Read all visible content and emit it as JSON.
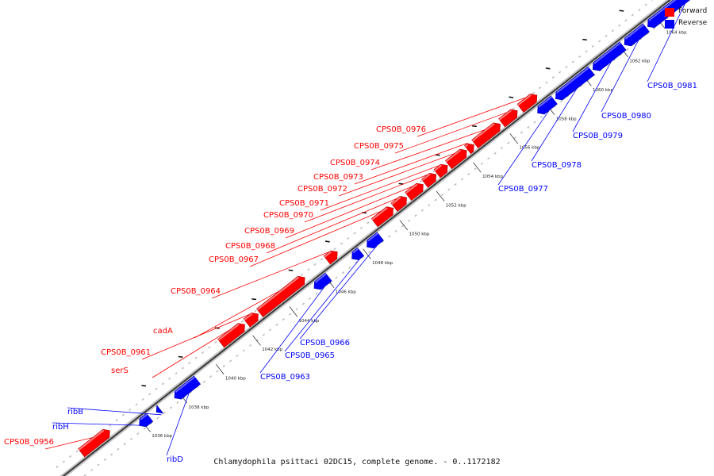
{
  "colors": {
    "forward": "#ff0000",
    "reverse": "#0000ff",
    "backbone": "#999999",
    "dots": "#bbbbbb"
  },
  "legend": {
    "forward_label": "Forward",
    "reverse_label": "Reverse"
  },
  "caption": "Chlamydophila psittaci 02DC15, complete genome. - 0..1172182",
  "genome_view": {
    "ticks": [
      "1036 kbp",
      "1038 kbp",
      "1040 kbp",
      "1042 kbp",
      "1044 kbp",
      "1046 kbp",
      "1048 kbp",
      "1050 kbp",
      "1052 kbp",
      "1054 kbp",
      "1056 kbp",
      "1058 kbp",
      "1060 kbp",
      "1062 kbp",
      "1064 kbp"
    ],
    "genes": [
      {
        "label": "CPS0B_0956",
        "strand": "forward"
      },
      {
        "label": "ribH",
        "strand": "reverse"
      },
      {
        "label": "ribB",
        "strand": "reverse"
      },
      {
        "label": "ribD",
        "strand": "reverse"
      },
      {
        "label": "serS",
        "strand": "forward"
      },
      {
        "label": "CPS0B_0961",
        "strand": "forward"
      },
      {
        "label": "cadA",
        "strand": "forward"
      },
      {
        "label": "CPS0B_0963",
        "strand": "reverse"
      },
      {
        "label": "CPS0B_0964",
        "strand": "forward"
      },
      {
        "label": "CPS0B_0965",
        "strand": "reverse"
      },
      {
        "label": "CPS0B_0966",
        "strand": "reverse"
      },
      {
        "label": "CPS0B_0967",
        "strand": "forward"
      },
      {
        "label": "CPS0B_0968",
        "strand": "forward"
      },
      {
        "label": "CPS0B_0969",
        "strand": "forward"
      },
      {
        "label": "CPS0B_0970",
        "strand": "forward"
      },
      {
        "label": "CPS0B_0971",
        "strand": "forward"
      },
      {
        "label": "CPS0B_0972",
        "strand": "forward"
      },
      {
        "label": "CPS0B_0973",
        "strand": "forward"
      },
      {
        "label": "CPS0B_0974",
        "strand": "forward"
      },
      {
        "label": "CPS0B_0975",
        "strand": "forward"
      },
      {
        "label": "CPS0B_0976",
        "strand": "forward"
      },
      {
        "label": "CPS0B_0977",
        "strand": "reverse"
      },
      {
        "label": "CPS0B_0978",
        "strand": "reverse"
      },
      {
        "label": "CPS0B_0979",
        "strand": "reverse"
      },
      {
        "label": "CPS0B_0980",
        "strand": "reverse"
      },
      {
        "label": "CPS0B_0981",
        "strand": "reverse"
      }
    ]
  }
}
